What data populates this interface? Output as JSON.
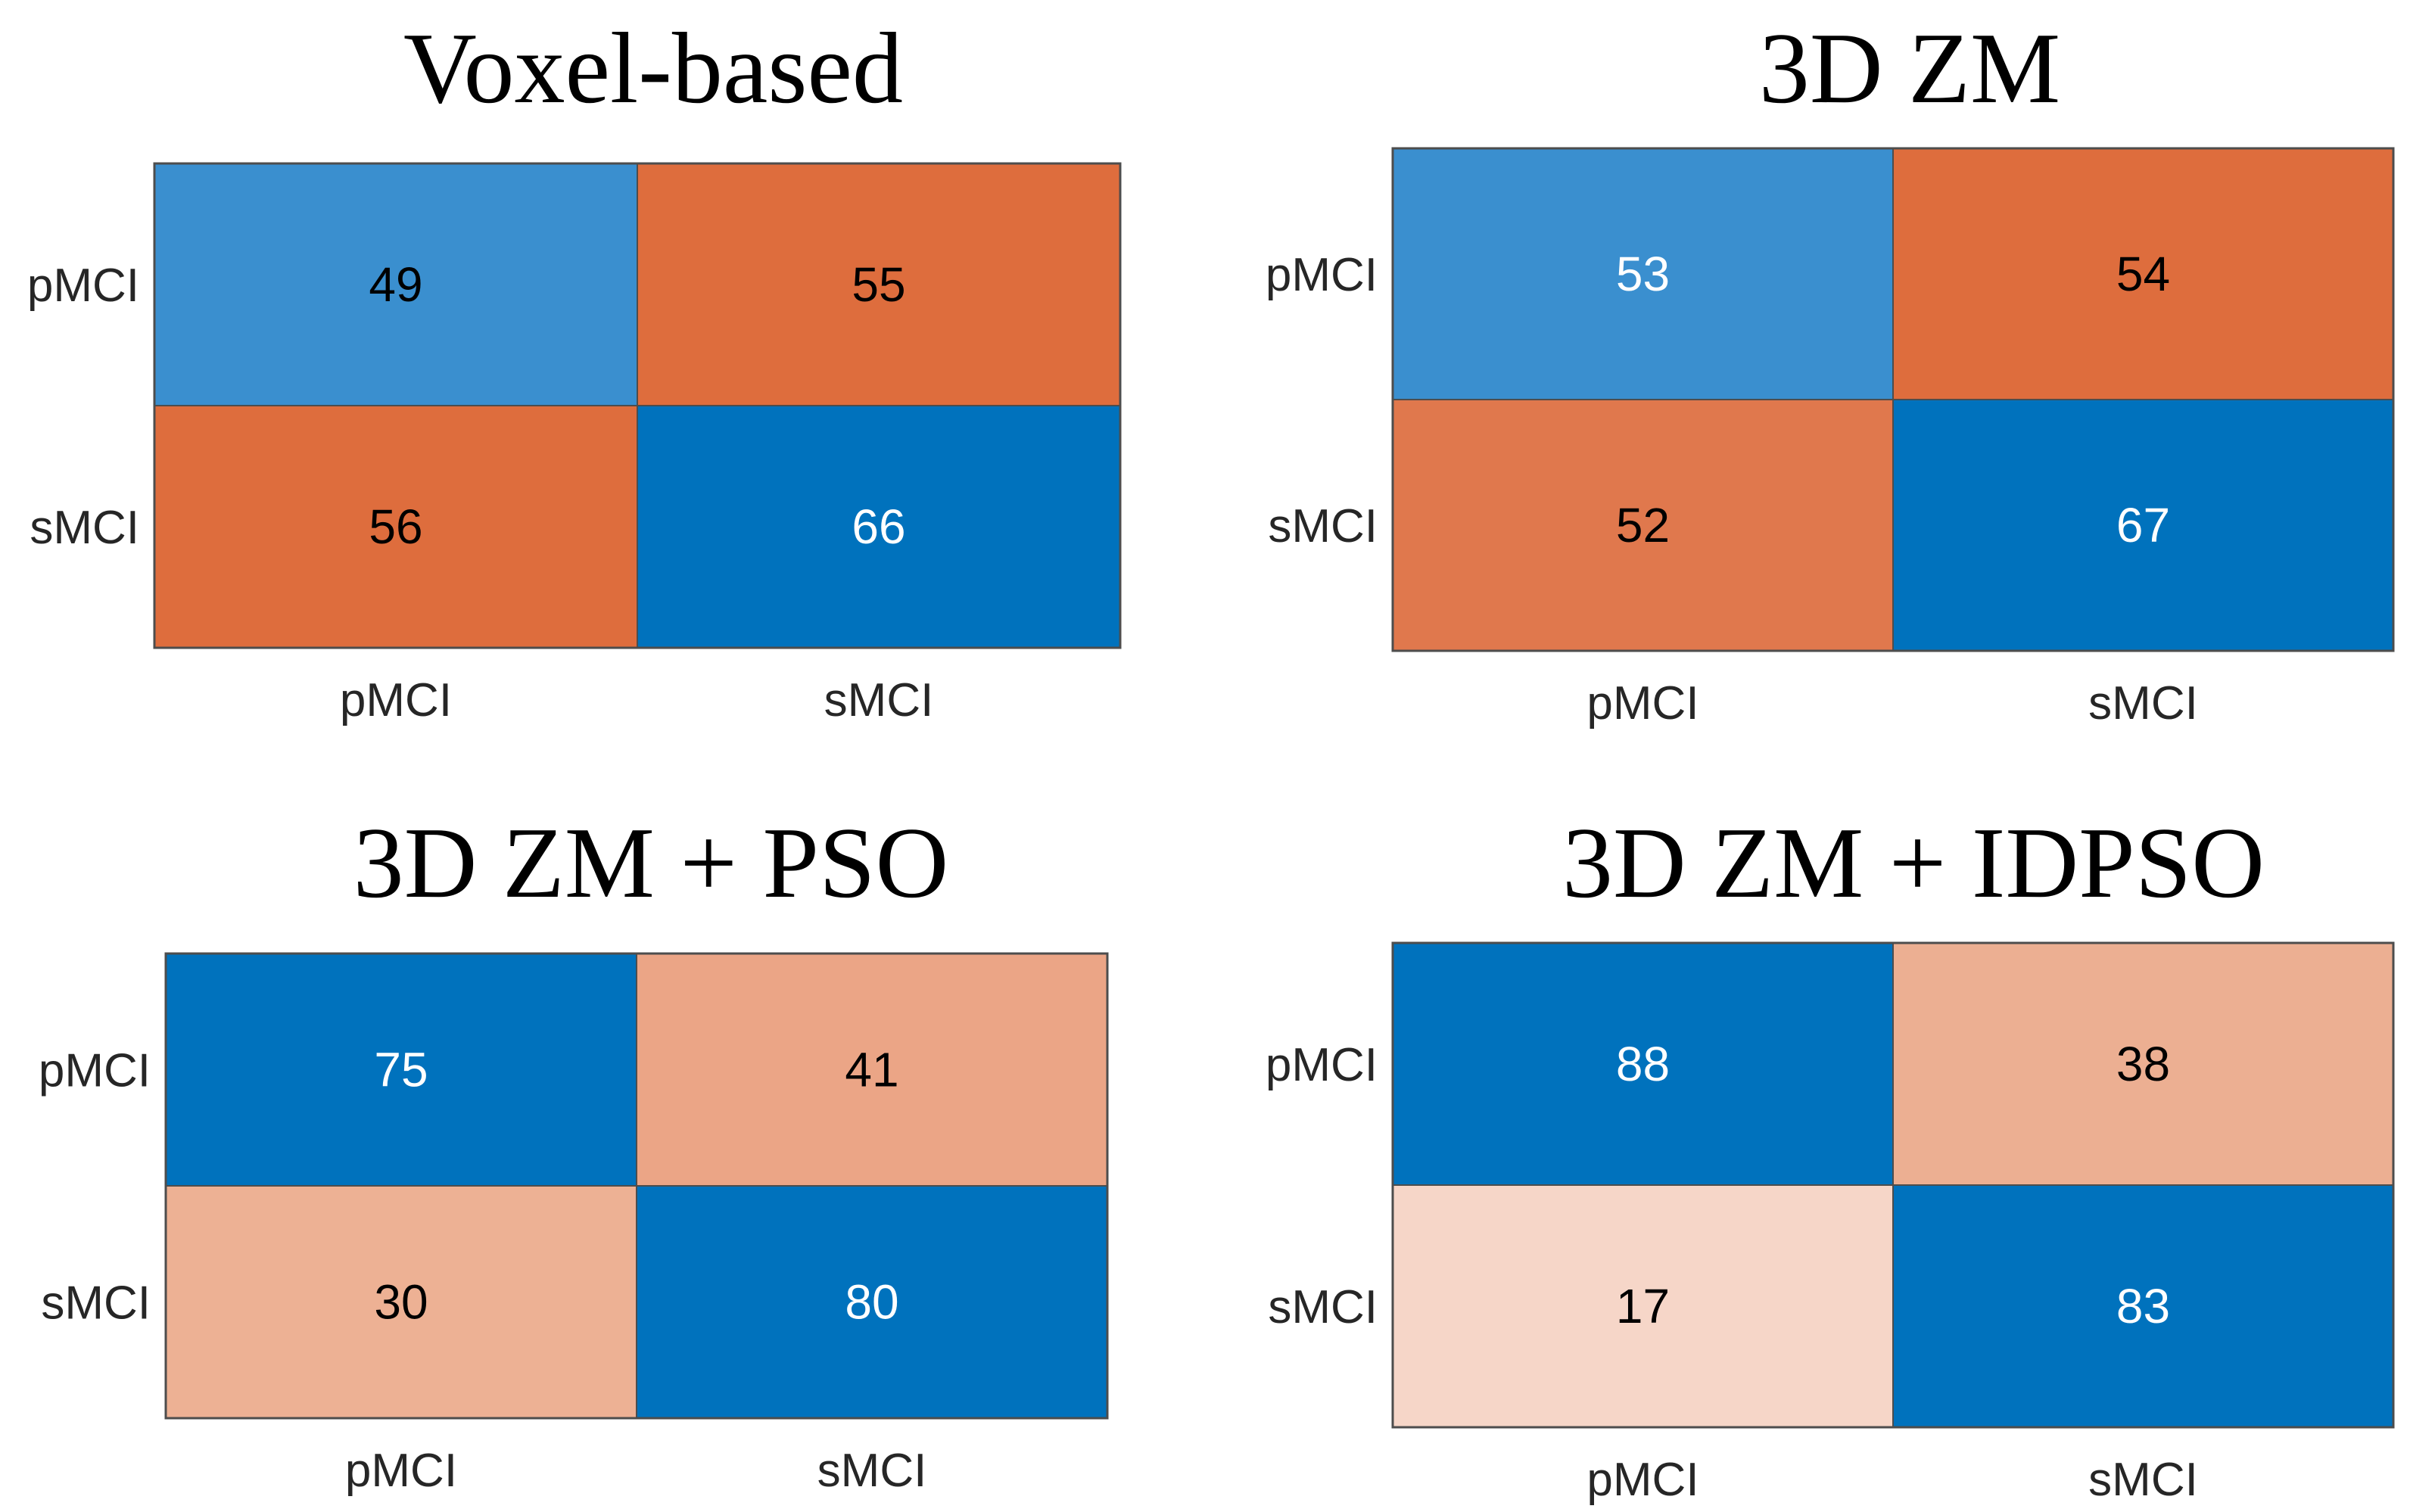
{
  "figure": {
    "colors": {
      "blue_dark": "#0072BD",
      "blue_mid": "#3A8FCF",
      "orange_dark": "#DE6D3D",
      "orange_mid": "#E0784D",
      "orange_light": "#EBA586",
      "orange_pale": "#F6D6C8",
      "text_dark": "#000000",
      "text_light": "#ffffff"
    }
  },
  "chart_data": [
    {
      "type": "heatmap",
      "title": "Voxel-based",
      "rows": [
        "pMCI",
        "sMCI"
      ],
      "columns": [
        "pMCI",
        "sMCI"
      ],
      "values": [
        [
          49,
          55
        ],
        [
          56,
          66
        ]
      ],
      "cell_colors": [
        [
          "#3A8FCF",
          "#DE6D3D"
        ],
        [
          "#DE6D3D",
          "#0072BD"
        ]
      ],
      "text_colors": [
        [
          "#000000",
          "#000000"
        ],
        [
          "#000000",
          "#ffffff"
        ]
      ]
    },
    {
      "type": "heatmap",
      "title": "3D ZM",
      "rows": [
        "pMCI",
        "sMCI"
      ],
      "columns": [
        "pMCI",
        "sMCI"
      ],
      "values": [
        [
          53,
          54
        ],
        [
          52,
          67
        ]
      ],
      "cell_colors": [
        [
          "#3A8FCF",
          "#DE6D3D"
        ],
        [
          "#E0784D",
          "#0072BD"
        ]
      ],
      "text_colors": [
        [
          "#ffffff",
          "#000000"
        ],
        [
          "#000000",
          "#ffffff"
        ]
      ]
    },
    {
      "type": "heatmap",
      "title": "3D ZM + PSO",
      "rows": [
        "pMCI",
        "sMCI"
      ],
      "columns": [
        "pMCI",
        "sMCI"
      ],
      "values": [
        [
          75,
          41
        ],
        [
          30,
          80
        ]
      ],
      "cell_colors": [
        [
          "#0072BD",
          "#EBA586"
        ],
        [
          "#EDB194",
          "#0072BD"
        ]
      ],
      "text_colors": [
        [
          "#ffffff",
          "#000000"
        ],
        [
          "#000000",
          "#ffffff"
        ]
      ]
    },
    {
      "type": "heatmap",
      "title": "3D ZM + IDPSO",
      "rows": [
        "pMCI",
        "sMCI"
      ],
      "columns": [
        "pMCI",
        "sMCI"
      ],
      "values": [
        [
          88,
          38
        ],
        [
          17,
          83
        ]
      ],
      "cell_colors": [
        [
          "#0072BD",
          "#ECAF92"
        ],
        [
          "#F6D6C8",
          "#0072BD"
        ]
      ],
      "text_colors": [
        [
          "#ffffff",
          "#000000"
        ],
        [
          "#000000",
          "#ffffff"
        ]
      ]
    }
  ]
}
